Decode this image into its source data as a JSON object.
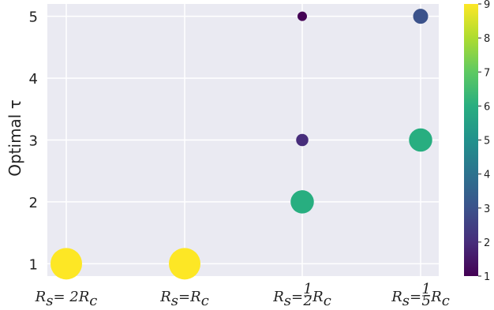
{
  "chart_data": {
    "type": "scatter",
    "ylabel": "Optimal τ",
    "categories": [
      {
        "parts": [
          {
            "t": "R",
            "i": true
          },
          {
            "t": "s",
            "sub": true,
            "i": true
          },
          {
            "t": " = 2"
          },
          {
            "t": "R",
            "i": true
          },
          {
            "t": "c",
            "sub": true,
            "i": true
          }
        ]
      },
      {
        "parts": [
          {
            "t": "R",
            "i": true
          },
          {
            "t": "s",
            "sub": true,
            "i": true
          },
          {
            "t": " = "
          },
          {
            "t": "R",
            "i": true
          },
          {
            "t": "c",
            "sub": true,
            "i": true
          }
        ]
      },
      {
        "parts": [
          {
            "t": "R",
            "i": true
          },
          {
            "t": "s",
            "sub": true,
            "i": true
          },
          {
            "t": " = "
          },
          {
            "frac": [
              "1",
              "2"
            ]
          },
          {
            "t": "R",
            "i": true
          },
          {
            "t": "c",
            "sub": true,
            "i": true
          }
        ]
      },
      {
        "parts": [
          {
            "t": "R",
            "i": true
          },
          {
            "t": "s",
            "sub": true,
            "i": true
          },
          {
            "t": " = "
          },
          {
            "frac": [
              "1",
              "5"
            ]
          },
          {
            "t": "R",
            "i": true
          },
          {
            "t": "c",
            "sub": true,
            "i": true
          }
        ]
      }
    ],
    "yticks": [
      "1",
      "2",
      "3",
      "4",
      "5"
    ],
    "ylim": [
      0.8,
      5.2
    ],
    "points": [
      {
        "cat": 0,
        "y": 1,
        "value": 9
      },
      {
        "cat": 1,
        "y": 1,
        "value": 9
      },
      {
        "cat": 2,
        "y": 2,
        "value": 6
      },
      {
        "cat": 2,
        "y": 3,
        "value": 2
      },
      {
        "cat": 2,
        "y": 5,
        "value": 1
      },
      {
        "cat": 3,
        "y": 3,
        "value": 6
      },
      {
        "cat": 3,
        "y": 5,
        "value": 3
      }
    ],
    "colorbar": {
      "colormap": "viridis",
      "range": [
        1,
        9
      ],
      "ticks": [
        "1",
        "2",
        "3",
        "4",
        "5",
        "6",
        "7",
        "8",
        "9"
      ]
    },
    "grid": true,
    "legend": "none"
  }
}
